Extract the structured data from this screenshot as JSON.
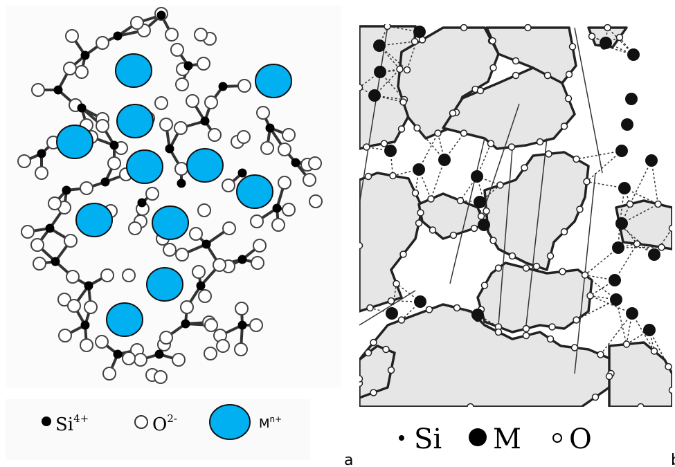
{
  "panel_a": {
    "label": "a",
    "legend": {
      "si": "Si",
      "si_charge": "4+",
      "o": "O",
      "o_charge": "2-",
      "m": "M",
      "m_charge": "n+"
    },
    "colors": {
      "cation": "#00b0f0",
      "si": "#000000",
      "o": "#ffffff"
    }
  },
  "panel_b": {
    "label": "b",
    "legend": {
      "si": "Si",
      "m": "M",
      "o": "O"
    },
    "colors": {
      "region_fill": "#e6e6e6",
      "m": "#111111"
    }
  }
}
